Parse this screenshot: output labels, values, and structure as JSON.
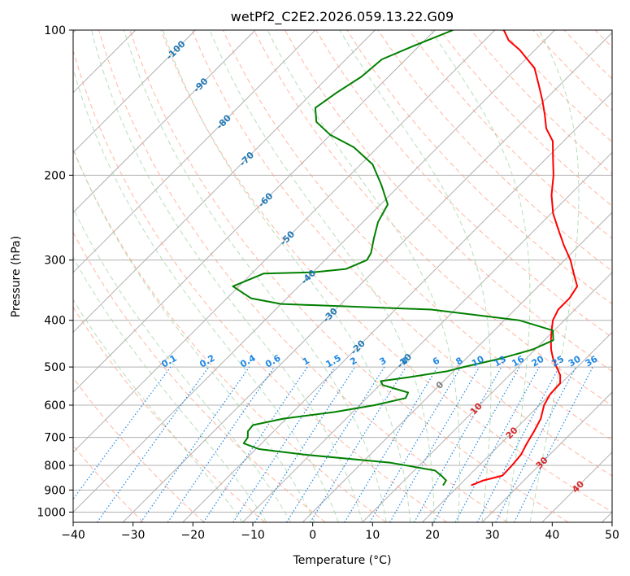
{
  "chart_data": {
    "type": "line",
    "diagram": "skew-t",
    "title": "wetPf2_C2E2.2026.059.13.22.G09",
    "xlabel": "Temperature (°C)",
    "ylabel": "Pressure (hPa)",
    "xlim": [
      -40,
      50
    ],
    "ylim": [
      1050,
      100
    ],
    "y_scale": "log",
    "grid": true,
    "x_ticks": [
      -40,
      -30,
      -20,
      -10,
      0,
      10,
      20,
      30,
      40,
      50
    ],
    "x_tick_labels": [
      "−40",
      "−30",
      "−20",
      "−10",
      "0",
      "10",
      "20",
      "30",
      "40",
      "50"
    ],
    "y_ticks": [
      100,
      200,
      300,
      400,
      500,
      600,
      700,
      800,
      900,
      1000
    ],
    "y_tick_labels": [
      "100",
      "200",
      "300",
      "400",
      "500",
      "600",
      "700",
      "800",
      "900",
      "1000"
    ],
    "isotherms": [
      -100,
      -90,
      -80,
      -70,
      -60,
      -50,
      -40,
      -30,
      -20,
      -10,
      0,
      10,
      20,
      30,
      40
    ],
    "isotherm_labels": [
      "-100",
      "-90",
      "-80",
      "-70",
      "-60",
      "-50",
      "-40",
      "-30",
      "-20",
      "-10",
      "0",
      "10",
      "20",
      "30",
      "40"
    ],
    "mixing_ratios": [
      0.1,
      0.2,
      0.4,
      0.6,
      1,
      1.5,
      2,
      3,
      4,
      6,
      8,
      10,
      13,
      16,
      20,
      25,
      30,
      36
    ],
    "mixing_ratio_labels": [
      "0.1",
      "0.2",
      "0.4",
      "0.6",
      "1",
      "1.5",
      "2",
      "3",
      "4",
      "6",
      "8",
      "10",
      "13",
      "16",
      "20",
      "25",
      "30",
      "36"
    ],
    "colors": {
      "temperature": "#ff0000",
      "dewpoint": "#008000",
      "isotherm_cold": "#1f77b4",
      "isotherm_warm": "#d62728",
      "isotherm_zero": "#808080",
      "mixing_ratio": "#1e88e5",
      "dry_adiabat": "#ff9e80",
      "moist_adiabat": "#a5d6a7",
      "grid": "#b0b0b0"
    },
    "series": [
      {
        "key": "temperature",
        "points": [
          [
            880,
            22.0
          ],
          [
            860,
            23.2
          ],
          [
            840,
            25.6
          ],
          [
            800,
            25.5
          ],
          [
            760,
            25.2
          ],
          [
            720,
            24.3
          ],
          [
            680,
            23.5
          ],
          [
            640,
            22.5
          ],
          [
            600,
            20.8
          ],
          [
            570,
            20.0
          ],
          [
            540,
            19.8
          ],
          [
            520,
            18.5
          ],
          [
            500,
            16.5
          ],
          [
            480,
            14.5
          ],
          [
            460,
            12.7
          ],
          [
            440,
            11.1
          ],
          [
            420,
            9.6
          ],
          [
            400,
            8.1
          ],
          [
            380,
            7.2
          ],
          [
            360,
            7.2
          ],
          [
            340,
            6.5
          ],
          [
            320,
            3.8
          ],
          [
            300,
            1.0
          ],
          [
            280,
            -2.5
          ],
          [
            260,
            -6.0
          ],
          [
            240,
            -9.7
          ],
          [
            220,
            -13.0
          ],
          [
            200,
            -16.0
          ],
          [
            185,
            -18.8
          ],
          [
            170,
            -21.8
          ],
          [
            160,
            -25.0
          ],
          [
            150,
            -27.5
          ],
          [
            140,
            -30.3
          ],
          [
            130,
            -33.5
          ],
          [
            120,
            -37.0
          ],
          [
            110,
            -42.5
          ],
          [
            105,
            -46.0
          ],
          [
            100,
            -48.5
          ]
        ]
      },
      {
        "key": "dewpoint",
        "points": [
          [
            880,
            17.3
          ],
          [
            860,
            17.0
          ],
          [
            840,
            15.4
          ],
          [
            820,
            13.5
          ],
          [
            790,
            4.8
          ],
          [
            760,
            -11.0
          ],
          [
            740,
            -19.5
          ],
          [
            720,
            -23.0
          ],
          [
            700,
            -23.3
          ],
          [
            680,
            -24.3
          ],
          [
            660,
            -24.5
          ],
          [
            640,
            -20.5
          ],
          [
            620,
            -13.0
          ],
          [
            600,
            -7.5
          ],
          [
            580,
            -3.5
          ],
          [
            565,
            -4.0
          ],
          [
            545,
            -9.5
          ],
          [
            535,
            -10.5
          ],
          [
            525,
            -6.5
          ],
          [
            510,
            -1.0
          ],
          [
            500,
            1.0
          ],
          [
            480,
            5.8
          ],
          [
            460,
            9.6
          ],
          [
            440,
            11.5
          ],
          [
            420,
            9.8
          ],
          [
            400,
            2.5
          ],
          [
            380,
            -14.0
          ],
          [
            370,
            -40.0
          ],
          [
            360,
            -46.0
          ],
          [
            340,
            -51.0
          ],
          [
            320,
            -48.0
          ],
          [
            318,
            -40.0
          ],
          [
            313,
            -35.0
          ],
          [
            300,
            -33.0
          ],
          [
            290,
            -33.5
          ],
          [
            270,
            -35.5
          ],
          [
            250,
            -37.5
          ],
          [
            230,
            -38.8
          ],
          [
            210,
            -43.0
          ],
          [
            190,
            -48.0
          ],
          [
            175,
            -54.0
          ],
          [
            165,
            -60.0
          ],
          [
            155,
            -64.5
          ],
          [
            145,
            -67.0
          ],
          [
            135,
            -66.0
          ],
          [
            125,
            -64.5
          ],
          [
            115,
            -64.0
          ],
          [
            108,
            -61.0
          ],
          [
            100,
            -57.0
          ]
        ]
      }
    ]
  }
}
